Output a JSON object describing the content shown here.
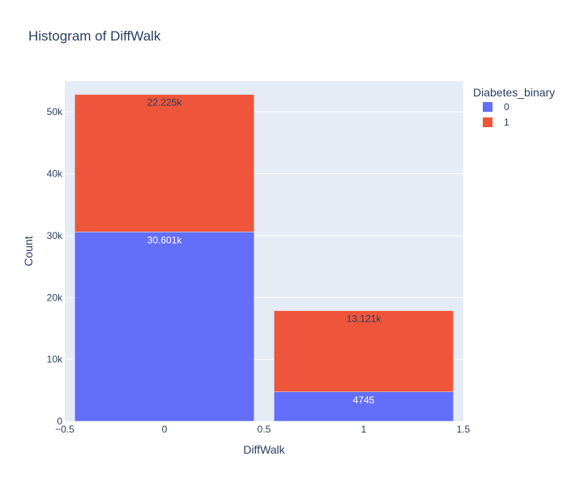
{
  "chart_data": {
    "type": "bar",
    "barmode": "stack",
    "title": "Histogram of DiffWalk",
    "xlabel": "DiffWalk",
    "ylabel": "Count",
    "categories": [
      0,
      1
    ],
    "xlim": [
      -0.5,
      1.5
    ],
    "xticks": [
      -0.5,
      0,
      0.5,
      1,
      1.5
    ],
    "xtick_labels": [
      "−0.5",
      "0",
      "0.5",
      "1",
      "1.5"
    ],
    "ylim": [
      0,
      55000
    ],
    "yticks": [
      0,
      10000,
      20000,
      30000,
      40000,
      50000
    ],
    "ytick_labels": [
      "0",
      "10k",
      "20k",
      "30k",
      "40k",
      "50k"
    ],
    "grid": true,
    "legend": {
      "title": "Diabetes_binary",
      "placement": "top-right"
    },
    "series": [
      {
        "name": "0",
        "values": [
          30601,
          4745
        ],
        "labels": [
          "30.601k",
          "4745"
        ],
        "color": "#636efa",
        "label_color": "#ffffff"
      },
      {
        "name": "1",
        "values": [
          22225,
          13121
        ],
        "labels": [
          "22.225k",
          "13.121k"
        ],
        "color": "#ef553b",
        "label_color": "#2a3f5f"
      }
    ],
    "plot_background": "#e5ecf6"
  }
}
